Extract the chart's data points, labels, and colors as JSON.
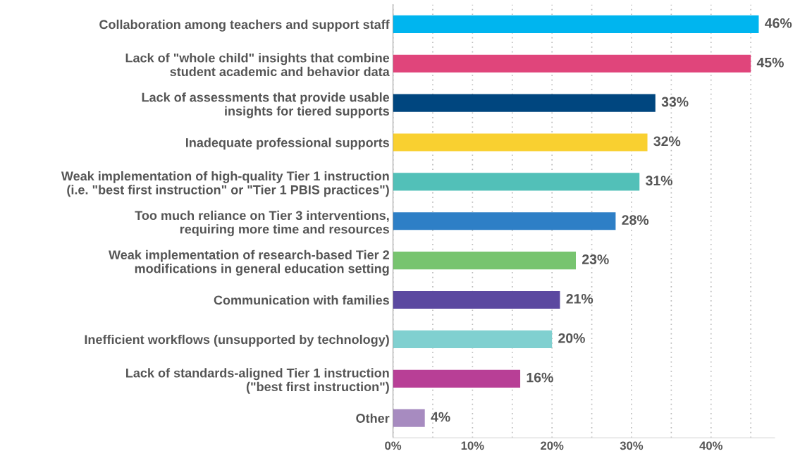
{
  "chart_data": {
    "type": "bar",
    "orientation": "horizontal",
    "categories": [
      "Collaboration among teachers and support staff",
      "Lack of \"whole child\" insights that combine\nstudent academic and behavior data",
      "Lack of assessments that provide usable\ninsights for tiered supports",
      "Inadequate professional supports",
      "Weak implementation of high-quality Tier 1 instruction\n(i.e. \"best first instruction\" or \"Tier 1 PBIS practices\")",
      "Too much reliance on Tier 3 interventions,\nrequiring more time and resources",
      "Weak implementation of research-based Tier 2\nmodifications in general education setting",
      "Communication with families",
      "Inefficient workflows (unsupported by technology)",
      "Lack of standards-aligned Tier 1 instruction\n(\"best first instruction\")",
      "Other"
    ],
    "values": [
      46,
      45,
      33,
      32,
      31,
      28,
      23,
      21,
      20,
      16,
      4
    ],
    "value_labels": [
      "46%",
      "45%",
      "33%",
      "32%",
      "31%",
      "28%",
      "23%",
      "21%",
      "20%",
      "16%",
      "4%"
    ],
    "colors": [
      "#00b5ef",
      "#e0457b",
      "#00467f",
      "#f9d030",
      "#52c0b8",
      "#2e7fc6",
      "#77c46f",
      "#5b48a0",
      "#80d0d0",
      "#b83f96",
      "#a78bc0"
    ],
    "xlim": [
      0,
      48
    ],
    "xticks": [
      {
        "value": 0,
        "label": "0%"
      },
      {
        "value": 5,
        "label": null
      },
      {
        "value": 10,
        "label": "10%"
      },
      {
        "value": 15,
        "label": null
      },
      {
        "value": 20,
        "label": "20%"
      },
      {
        "value": 25,
        "label": null
      },
      {
        "value": 30,
        "label": "30%"
      },
      {
        "value": 35,
        "label": null
      },
      {
        "value": 40,
        "label": "40%"
      },
      {
        "value": 45,
        "label": null
      }
    ],
    "grid": "x"
  }
}
